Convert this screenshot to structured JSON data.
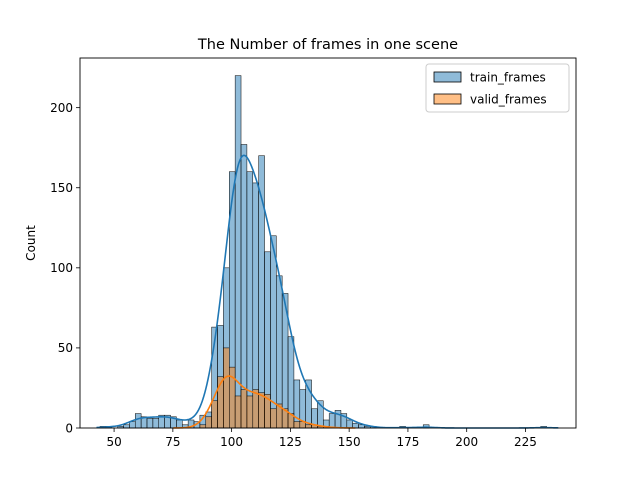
{
  "chart_data": {
    "type": "histogram",
    "title": "The Number of frames in one scene",
    "xlabel": "",
    "ylabel": "Count",
    "xlim": [
      35.5,
      246.5
    ],
    "ylim": [
      0,
      231
    ],
    "xticks": [
      50,
      75,
      100,
      125,
      150,
      175,
      200,
      225
    ],
    "yticks": [
      0,
      50,
      100,
      150,
      200
    ],
    "bin_start": 44,
    "bin_width": 2.5,
    "legend_position": "top-right",
    "series": [
      {
        "name": "train_frames",
        "color": "#1f77b4",
        "fill": "rgba(31,119,180,0.5)",
        "values": [
          1,
          1,
          0,
          1,
          2,
          4,
          9,
          7,
          6,
          6,
          8,
          8,
          7,
          5,
          2,
          5,
          4,
          8,
          10,
          63,
          64,
          100,
          160,
          220,
          177,
          160,
          153,
          170,
          110,
          120,
          95,
          84,
          57,
          30,
          24,
          30,
          12,
          17,
          5,
          9,
          11,
          9,
          5,
          3,
          2,
          1,
          1,
          0,
          0,
          0,
          0,
          1,
          0,
          0,
          0,
          2,
          0,
          0,
          0,
          0,
          0,
          0,
          0,
          0,
          0,
          0,
          0,
          0,
          0,
          0,
          0,
          0,
          0,
          0,
          0,
          1,
          0,
          0
        ]
      },
      {
        "name": "valid_frames",
        "color": "#ff7f0e",
        "fill": "rgba(255,127,14,0.5)",
        "values": [
          0,
          0,
          0,
          0,
          0,
          0,
          0,
          0,
          0,
          0,
          0,
          0,
          0,
          0,
          0,
          0,
          0,
          2,
          7,
          17,
          32,
          50,
          38,
          20,
          24,
          20,
          24,
          22,
          21,
          12,
          15,
          12,
          9,
          4,
          4,
          2,
          2,
          1,
          1,
          0,
          0,
          0,
          0,
          0,
          0,
          0,
          0,
          0,
          0,
          0,
          0,
          0,
          0,
          0,
          0,
          0,
          0,
          0,
          0,
          0,
          0,
          0,
          0,
          0,
          0,
          0,
          0,
          0,
          0,
          0,
          0,
          0,
          0,
          0,
          0,
          0,
          0,
          0
        ]
      }
    ]
  }
}
